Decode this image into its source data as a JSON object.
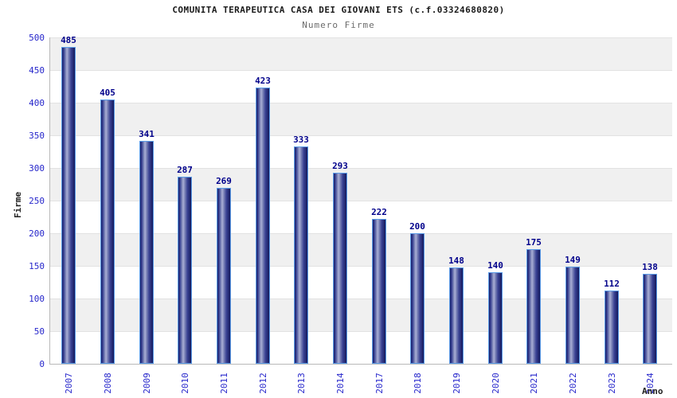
{
  "chart_data": {
    "type": "bar",
    "title": "COMUNITA TERAPEUTICA CASA DEI GIOVANI ETS (c.f.03324680820)",
    "subtitle": "Numero Firme",
    "xlabel": "Anno",
    "ylabel": "Firme",
    "categories": [
      "2007",
      "2008",
      "2009",
      "2010",
      "2011",
      "2012",
      "2013",
      "2014",
      "2017",
      "2018",
      "2019",
      "2020",
      "2021",
      "2022",
      "2023",
      "2024"
    ],
    "values": [
      485,
      405,
      341,
      287,
      269,
      423,
      333,
      293,
      222,
      200,
      148,
      140,
      175,
      149,
      112,
      138
    ],
    "ylim": [
      0,
      500
    ],
    "ytick_step": 50,
    "yticks": [
      0,
      50,
      100,
      150,
      200,
      250,
      300,
      350,
      400,
      450,
      500
    ],
    "grid": true,
    "legend": "none",
    "band_shading": "alternating horizontal 50-unit bands",
    "colors": {
      "tick_label": "#2626cb",
      "value_label": "#00008b",
      "title": "#1a1a1a",
      "subtitle": "#6b6b6b",
      "band_gray": "#f0f0f0",
      "band_white": "#ffffff",
      "gridline": "#e2e2e2",
      "axis_line": "#b9b9b9",
      "bar_border": "#5b9ce8",
      "bar_dark": "#141a5c",
      "bar_light": "#aab0d6"
    }
  }
}
